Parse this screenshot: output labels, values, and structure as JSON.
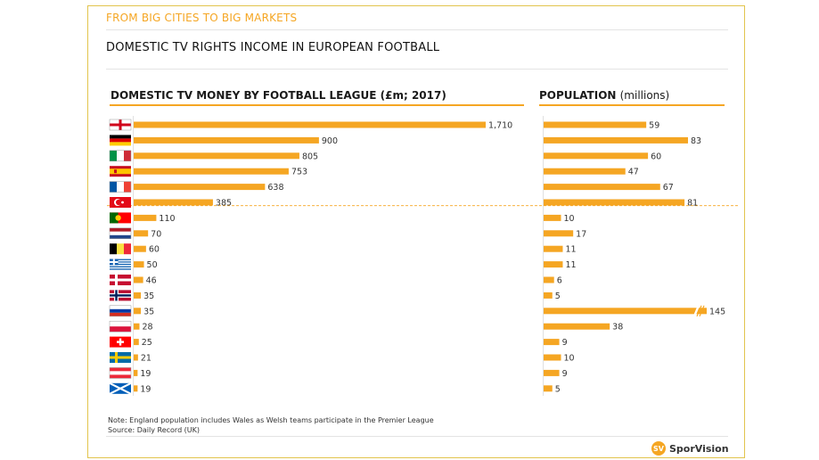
{
  "header": {
    "kicker": "FROM BIG CITIES TO BIG MARKETS",
    "title": "DOMESTIC TV RIGHTS INCOME IN EUROPEAN FOOTBALL"
  },
  "colors": {
    "bar": "#f5a623",
    "accent": "#e2c44d"
  },
  "chart_data": [
    {
      "type": "bar",
      "orientation": "horizontal",
      "title_bold": "DOMESTIC TV MONEY BY FOOTBALL LEAGUE",
      "title_light": "",
      "title_suffix": " (£m; 2017)",
      "categories": [
        "england-flag",
        "germany-flag",
        "italy-flag",
        "spain-flag",
        "france-flag",
        "turkey-flag",
        "portugal-flag",
        "netherlands-flag",
        "belgium-flag",
        "greece-flag",
        "denmark-flag",
        "norway-flag",
        "russia-flag",
        "poland-flag",
        "switzerland-flag",
        "sweden-flag",
        "austria-flag",
        "scotland-flag"
      ],
      "values": [
        1710,
        900,
        805,
        753,
        638,
        385,
        110,
        70,
        60,
        50,
        46,
        35,
        35,
        28,
        25,
        21,
        19,
        19
      ],
      "labels": [
        "1,710",
        "900",
        "805",
        "753",
        "638",
        "385",
        "110",
        "70",
        "60",
        "50",
        "46",
        "35",
        "35",
        "28",
        "25",
        "21",
        "19",
        "19"
      ],
      "xlim": [
        0,
        1710
      ]
    },
    {
      "type": "bar",
      "orientation": "horizontal",
      "title_bold": "POPULATION",
      "title_light": "(millions)",
      "values": [
        59,
        83,
        60,
        47,
        67,
        81,
        10,
        17,
        11,
        11,
        6,
        5,
        145,
        38,
        9,
        10,
        9,
        5
      ],
      "labels": [
        "59",
        "83",
        "60",
        "47",
        "67",
        "81",
        "10",
        "17",
        "11",
        "11",
        "6",
        "5",
        "145",
        "38",
        "9",
        "10",
        "9",
        "5"
      ],
      "axis_break_on": [
        "145"
      ]
    }
  ],
  "footer": {
    "note": "Note: England population  includes  Wales as Welsh teams participate  in the Premier League",
    "source": "Source: Daily Record (UK)",
    "logo_mark": "SV",
    "logo_text": "SporVision"
  }
}
